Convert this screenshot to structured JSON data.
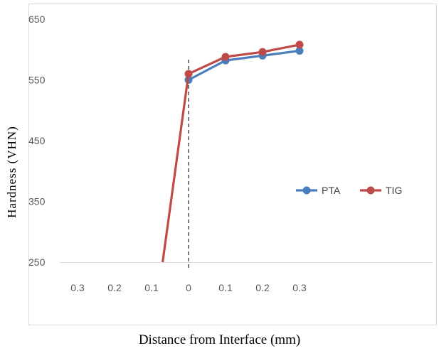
{
  "chart_data": {
    "type": "line",
    "categories": [
      "0.3",
      "0.2",
      "0.1",
      "0",
      "0.1",
      "0.2",
      "0.3"
    ],
    "y_ticks": [
      "650",
      "550",
      "450",
      "350",
      "250"
    ],
    "ylim": [
      250,
      650
    ],
    "xlabel": "Distance from Interface (mm)",
    "ylabel": "Hardness  (VHN)",
    "legend_position": "right",
    "interface_marker_category": "0",
    "series": [
      {
        "name": "PTA",
        "color": "#4a7ebb",
        "x": [
          "0",
          "0.1",
          "0.2",
          "0.3"
        ],
        "values": [
          550,
          582,
          590,
          598
        ]
      },
      {
        "name": "TIG",
        "color": "#be4b48",
        "x": [
          "-0.07",
          "0",
          "0.1",
          "0.2",
          "0.3"
        ],
        "values": [
          250,
          560,
          588,
          596,
          608
        ]
      }
    ]
  }
}
